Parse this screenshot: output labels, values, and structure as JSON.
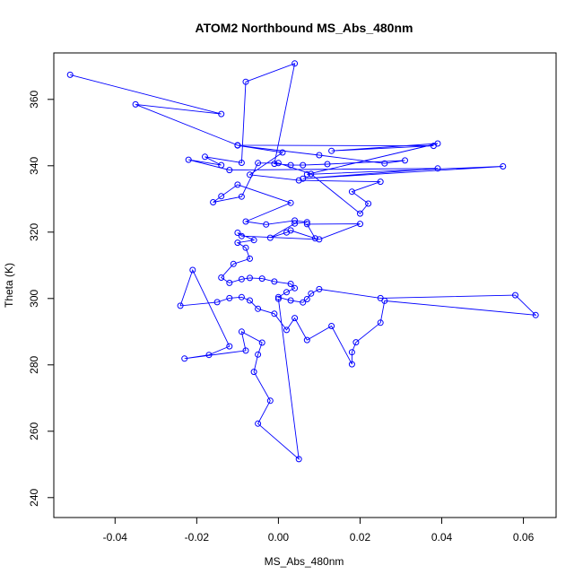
{
  "chart_data": {
    "type": "line",
    "title": "ATOM2 Northbound MS_Abs_480nm",
    "xlabel": "MS_Abs_480nm",
    "ylabel": "Theta (K)",
    "xlim": [
      -0.055,
      0.068
    ],
    "ylim": [
      234,
      374
    ],
    "xticks": [
      -0.04,
      -0.02,
      0.0,
      0.02,
      0.04,
      0.06
    ],
    "xtick_labels": [
      "-0.04",
      "-0.02",
      "0.00",
      "0.02",
      "0.04",
      "0.06"
    ],
    "yticks": [
      240,
      260,
      280,
      300,
      320,
      340,
      360
    ],
    "ytick_labels": [
      "240",
      "260",
      "280",
      "300",
      "320",
      "340",
      "360"
    ],
    "grid": false,
    "series_color": "#0000ff",
    "marker": "open-circle",
    "points": [
      [
        -0.051,
        367.4
      ],
      [
        -0.014,
        355.6
      ],
      [
        -0.035,
        358.5
      ],
      [
        -0.01,
        346.2
      ],
      [
        0.038,
        346.0
      ],
      [
        0.013,
        344.5
      ],
      [
        0.039,
        346.7
      ],
      [
        0.007,
        337.4
      ],
      [
        0.055,
        339.8
      ],
      [
        0.006,
        336.1
      ],
      [
        0.039,
        339.2
      ],
      [
        -0.012,
        338.7
      ],
      [
        -0.022,
        341.8
      ],
      [
        -0.014,
        340.2
      ],
      [
        -0.018,
        342.7
      ],
      [
        -0.009,
        340.9
      ],
      [
        -0.008,
        365.3
      ],
      [
        0.004,
        370.8
      ],
      [
        -0.001,
        340.6
      ],
      [
        0.003,
        340.2
      ],
      [
        0.006,
        340.2
      ],
      [
        0.012,
        340.5
      ],
      [
        0.031,
        341.6
      ],
      [
        0.026,
        340.7
      ],
      [
        0.01,
        343.2
      ],
      [
        -0.01,
        346.1
      ],
      [
        0.001,
        344.0
      ],
      [
        -0.007,
        337.3
      ],
      [
        0.005,
        335.6
      ],
      [
        0.025,
        335.2
      ],
      [
        0.018,
        332.2
      ],
      [
        0.022,
        328.6
      ],
      [
        0.02,
        325.6
      ],
      [
        0.008,
        337.5
      ],
      [
        0.0,
        340.8
      ],
      [
        -0.005,
        340.8
      ],
      [
        -0.009,
        330.7
      ],
      [
        -0.016,
        329.0
      ],
      [
        -0.014,
        330.8
      ],
      [
        -0.01,
        334.3
      ],
      [
        0.003,
        328.8
      ],
      [
        -0.008,
        323.2
      ],
      [
        -0.003,
        322.3
      ],
      [
        0.004,
        323.5
      ],
      [
        0.007,
        323.0
      ],
      [
        0.004,
        322.6
      ],
      [
        -0.002,
        318.3
      ],
      [
        0.002,
        319.9
      ],
      [
        0.003,
        320.5
      ],
      [
        0.009,
        318.1
      ],
      [
        0.007,
        322.4
      ],
      [
        0.02,
        322.5
      ],
      [
        0.01,
        317.8
      ],
      [
        -0.009,
        318.8
      ],
      [
        -0.01,
        319.8
      ],
      [
        -0.006,
        317.6
      ],
      [
        -0.01,
        316.8
      ],
      [
        -0.008,
        315.3
      ],
      [
        -0.007,
        312.0
      ],
      [
        -0.011,
        310.4
      ],
      [
        -0.014,
        306.3
      ],
      [
        -0.012,
        304.7
      ],
      [
        -0.009,
        305.8
      ],
      [
        -0.007,
        306.2
      ],
      [
        -0.004,
        306.0
      ],
      [
        -0.001,
        305.1
      ],
      [
        0.003,
        304.4
      ],
      [
        0.004,
        303.1
      ],
      [
        0.002,
        301.9
      ],
      [
        0.0,
        300.4
      ],
      [
        0.003,
        299.4
      ],
      [
        0.006,
        298.8
      ],
      [
        0.007,
        299.8
      ],
      [
        0.008,
        301.5
      ],
      [
        0.01,
        302.8
      ],
      [
        0.025,
        300.1
      ],
      [
        0.058,
        301.0
      ],
      [
        0.063,
        295.0
      ],
      [
        0.026,
        299.3
      ],
      [
        0.025,
        292.7
      ],
      [
        0.019,
        286.8
      ],
      [
        0.018,
        283.8
      ],
      [
        0.018,
        280.2
      ],
      [
        0.013,
        291.7
      ],
      [
        0.007,
        287.5
      ],
      [
        0.004,
        294.1
      ],
      [
        0.002,
        290.5
      ],
      [
        -0.001,
        295.4
      ],
      [
        -0.005,
        296.9
      ],
      [
        -0.007,
        299.4
      ],
      [
        -0.009,
        300.4
      ],
      [
        -0.012,
        300.1
      ],
      [
        -0.015,
        298.9
      ],
      [
        -0.024,
        297.8
      ],
      [
        -0.021,
        308.6
      ],
      [
        -0.012,
        285.6
      ],
      [
        -0.017,
        283.0
      ],
      [
        -0.023,
        281.9
      ],
      [
        -0.008,
        284.3
      ],
      [
        -0.009,
        290.0
      ],
      [
        -0.004,
        286.7
      ],
      [
        -0.005,
        283.1
      ],
      [
        -0.006,
        277.9
      ],
      [
        -0.002,
        269.2
      ],
      [
        -0.005,
        262.3
      ],
      [
        0.005,
        251.6
      ],
      [
        0.0,
        299.9
      ]
    ]
  }
}
